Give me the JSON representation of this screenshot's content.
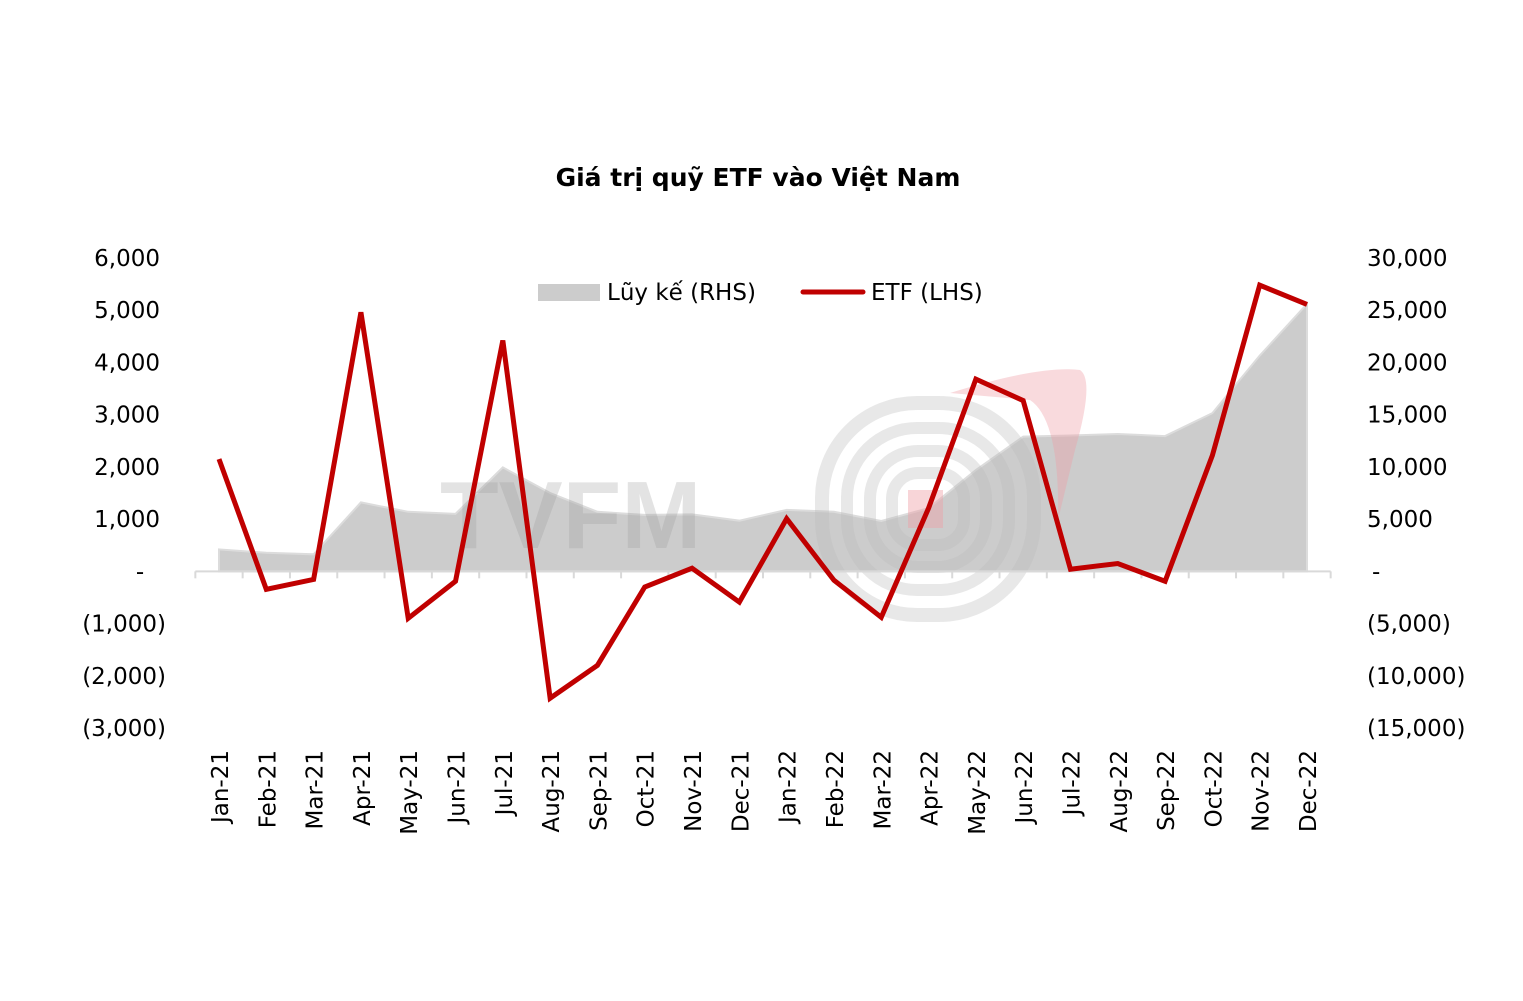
{
  "chart_data": {
    "type": "line+area",
    "title": "Giá trị quỹ ETF vào Việt Nam",
    "categories": [
      "Jan-21",
      "Feb-21",
      "Mar-21",
      "Apr-21",
      "May-21",
      "Jun-21",
      "Jul-21",
      "Aug-21",
      "Sep-21",
      "Oct-21",
      "Nov-21",
      "Dec-21",
      "Jan-22",
      "Feb-22",
      "Mar-22",
      "Apr-22",
      "May-22",
      "Jun-22",
      "Jul-22",
      "Aug-22",
      "Sep-22",
      "Oct-22",
      "Nov-22",
      "Dec-22"
    ],
    "series": [
      {
        "name": "Lũy kế (RHS)",
        "type": "area",
        "axis": "right",
        "color": "#cccccc",
        "values": [
          2100,
          1780,
          1630,
          6600,
          5700,
          5500,
          9950,
          7500,
          5700,
          5400,
          5450,
          4850,
          5880,
          5700,
          4820,
          6050,
          9700,
          12900,
          13000,
          13150,
          12950,
          15150,
          20650,
          25600
        ]
      },
      {
        "name": "ETF (LHS)",
        "type": "line",
        "axis": "left",
        "color": "#c00000",
        "values": [
          2150,
          -345,
          -155,
          4960,
          -900,
          -190,
          4420,
          -2430,
          -1800,
          -300,
          60,
          -590,
          1010,
          -170,
          -880,
          1210,
          3680,
          3270,
          40,
          150,
          -190,
          2220,
          5480,
          5110
        ]
      }
    ],
    "left_axis": {
      "ylim": [
        -3000,
        6000
      ],
      "ticks": [
        6000,
        5000,
        4000,
        3000,
        2000,
        1000,
        0,
        -1000,
        -2000,
        -3000
      ],
      "tick_labels": [
        "6,000",
        "5,000",
        "4,000",
        "3,000",
        "2,000",
        "1,000",
        "-",
        "(1,000)",
        "(2,000)",
        "(3,000)"
      ]
    },
    "right_axis": {
      "ylim": [
        -15000,
        30000
      ],
      "ticks": [
        30000,
        25000,
        20000,
        15000,
        10000,
        5000,
        0,
        -5000,
        -10000,
        -15000
      ],
      "tick_labels": [
        "30,000",
        "25,000",
        "20,000",
        "15,000",
        "10,000",
        "5,000",
        "-",
        "(5,000)",
        "(10,000)",
        "(15,000)"
      ]
    },
    "legend": {
      "placement": "top-center",
      "entries": [
        "Lũy kế (RHS)",
        "ETF (LHS)"
      ]
    },
    "grid": false,
    "watermark": "TVFM"
  }
}
